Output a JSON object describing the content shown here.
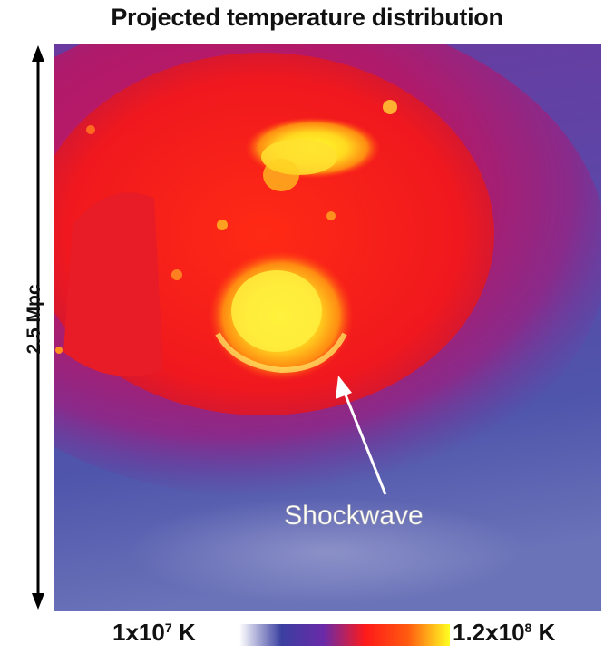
{
  "title": "Projected temperature distribution",
  "scale": {
    "label": "2.5 Mpc"
  },
  "annotation": {
    "label": "Shockwave"
  },
  "colorbar": {
    "min_base": "1x10",
    "min_exp": "7",
    "min_unit": " K",
    "max_base": "1.2x10",
    "max_exp": "8",
    "max_unit": " K",
    "colors": [
      "#ffffff",
      "#3b3fa0",
      "#6a2aa8",
      "#ff1a1a",
      "#ff5a10",
      "#ffff22"
    ]
  }
}
